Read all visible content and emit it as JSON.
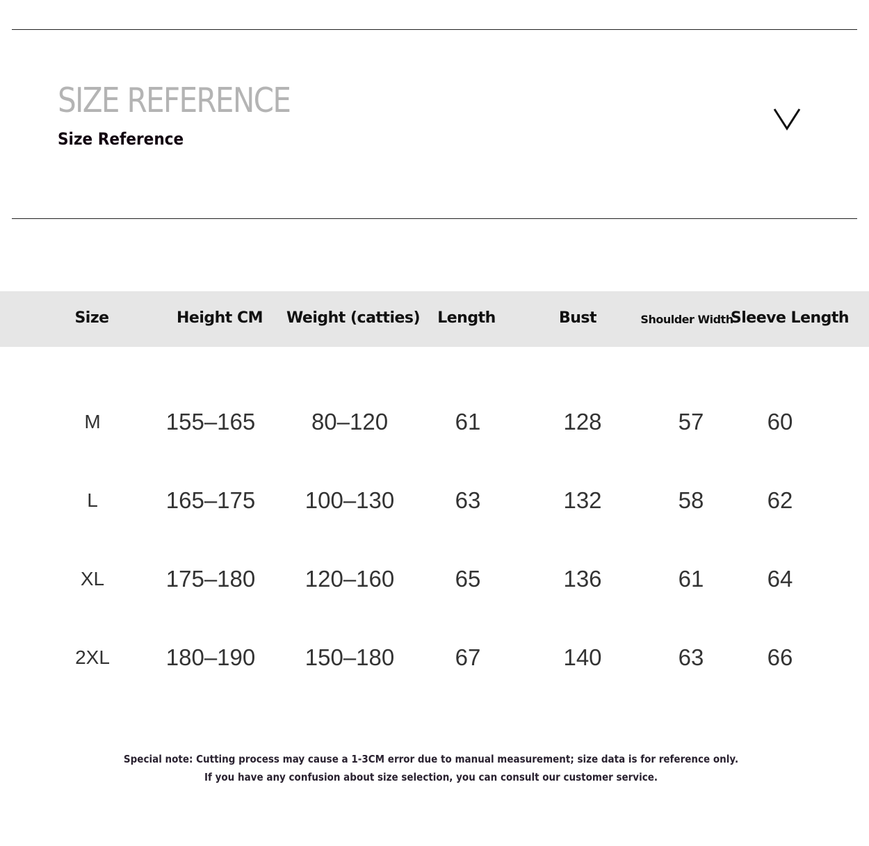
{
  "header": {
    "title_large": "SIZE REFERENCE",
    "title": "Size Reference",
    "icon": "chevron-down-icon"
  },
  "table": {
    "columns": [
      "Size",
      "Height CM",
      "Weight (catties)",
      "Length",
      "Bust",
      "Shoulder Width",
      "Sleeve Length"
    ],
    "rows": [
      [
        "M",
        "155–165",
        "80–120",
        "61",
        "128",
        "57",
        "60"
      ],
      [
        "L",
        "165–175",
        "100–130",
        "63",
        "132",
        "58",
        "62"
      ],
      [
        "XL",
        "175–180",
        "120–160",
        "65",
        "136",
        "61",
        "64"
      ],
      [
        "2XL",
        "180–190",
        "150–180",
        "67",
        "140",
        "63",
        "66"
      ]
    ]
  },
  "notes": [
    "Special note: Cutting process may cause a 1-3CM error due to manual measurement; size data is for reference only.",
    "If you have any confusion about size selection, you can consult our customer service."
  ]
}
